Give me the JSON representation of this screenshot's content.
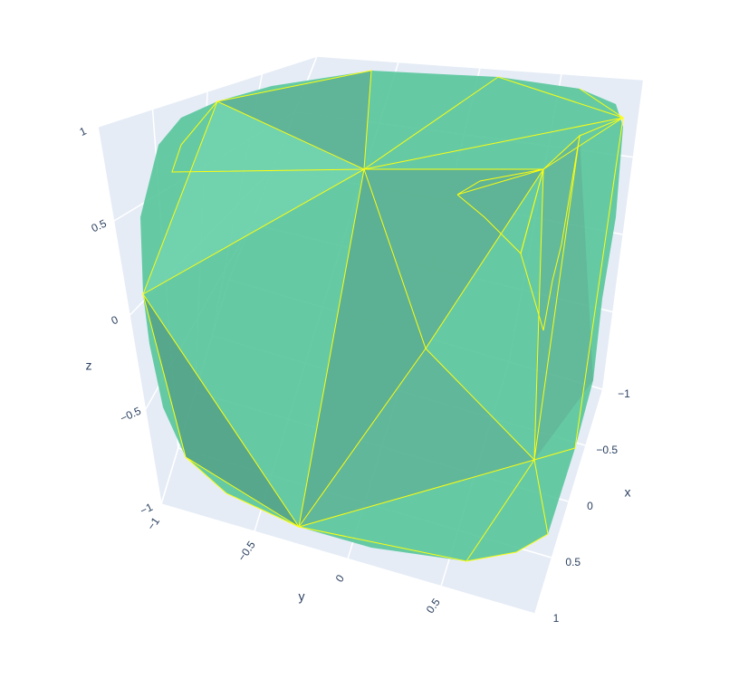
{
  "chart_data": {
    "type": "mesh3d",
    "xaxis_title": "x",
    "yaxis_title": "y",
    "zaxis_title": "z",
    "xlim": [
      -1,
      1
    ],
    "ylim": [
      -1,
      1
    ],
    "zlim": [
      -1,
      1
    ],
    "xticks": [
      {
        "value": -1,
        "label": "−1"
      },
      {
        "value": -0.5,
        "label": "−0.5"
      },
      0,
      0.5,
      1
    ],
    "yticks": [
      {
        "value": -1,
        "label": "−1"
      },
      {
        "value": -0.5,
        "label": "−0.5"
      },
      0,
      0.5
    ],
    "zticks": [
      {
        "value": -1,
        "label": "−1"
      },
      {
        "value": -0.5,
        "label": "−0.5"
      },
      0,
      0.5,
      1
    ],
    "color": "#5fc9a0",
    "edge_color": "#ffff00"
  }
}
